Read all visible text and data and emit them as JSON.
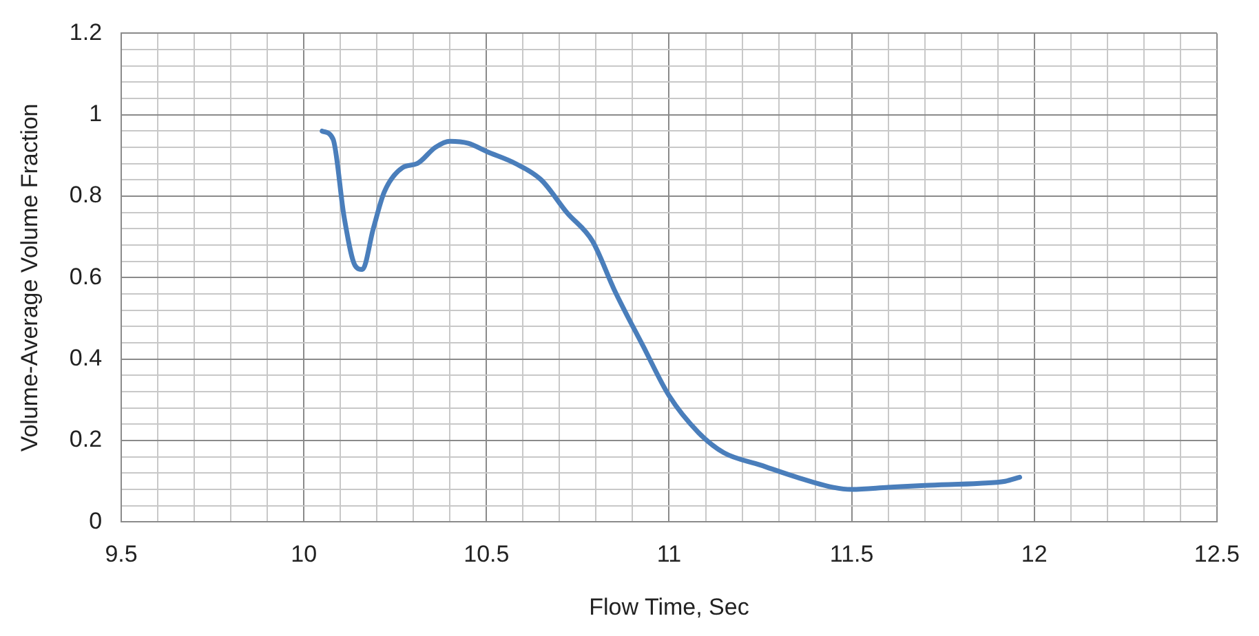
{
  "chart_data": {
    "type": "line",
    "xlabel": "Flow Time, Sec",
    "ylabel": "Volume-Average Volume Fraction",
    "x": [
      10.05,
      10.08,
      10.11,
      10.14,
      10.16,
      10.19,
      10.22,
      10.27,
      10.31,
      10.36,
      10.4,
      10.45,
      10.5,
      10.58,
      10.65,
      10.72,
      10.79,
      10.85,
      10.93,
      11.0,
      11.08,
      11.15,
      11.25,
      11.35,
      11.45,
      11.5,
      11.6,
      11.7,
      11.85,
      11.92,
      11.96
    ],
    "series": [
      {
        "color": "#4a7ebb",
        "values": [
          0.96,
          0.94,
          0.75,
          0.63,
          0.62,
          0.72,
          0.81,
          0.87,
          0.88,
          0.92,
          0.935,
          0.93,
          0.91,
          0.88,
          0.84,
          0.76,
          0.69,
          0.57,
          0.43,
          0.31,
          0.22,
          0.17,
          0.14,
          0.11,
          0.085,
          0.08,
          0.085,
          0.09,
          0.095,
          0.1,
          0.11
        ]
      }
    ],
    "xlim": [
      9.5,
      12.5
    ],
    "xticks": [
      9.5,
      {
        "value": 9.6,
        "label": null
      },
      {
        "value": 9.7,
        "label": null
      },
      {
        "value": 9.8,
        "label": null
      },
      {
        "value": 9.9,
        "label": null
      },
      10,
      {
        "value": 10.1,
        "label": null
      },
      {
        "value": 10.2,
        "label": null
      },
      {
        "value": 10.3,
        "label": null
      },
      {
        "value": 10.4,
        "label": null
      },
      10.5,
      {
        "value": 10.6,
        "label": null
      },
      {
        "value": 10.7,
        "label": null
      },
      {
        "value": 10.8,
        "label": null
      },
      {
        "value": 10.9,
        "label": null
      },
      11,
      {
        "value": 11.1,
        "label": null
      },
      {
        "value": 11.2,
        "label": null
      },
      {
        "value": 11.3,
        "label": null
      },
      {
        "value": 11.4,
        "label": null
      },
      11.5,
      {
        "value": 11.6,
        "label": null
      },
      {
        "value": 11.7,
        "label": null
      },
      {
        "value": 11.8,
        "label": null
      },
      {
        "value": 11.9,
        "label": null
      },
      12,
      {
        "value": 12.1,
        "label": null
      },
      {
        "value": 12.2,
        "label": null
      },
      {
        "value": 12.3,
        "label": null
      },
      {
        "value": 12.4,
        "label": null
      },
      12.5
    ],
    "ylim": [
      0,
      1.2
    ],
    "yticks": [
      0,
      {
        "value": 0.04,
        "label": null
      },
      {
        "value": 0.08,
        "label": null
      },
      {
        "value": 0.12,
        "label": null
      },
      {
        "value": 0.16,
        "label": null
      },
      0.2,
      {
        "value": 0.24,
        "label": null
      },
      {
        "value": 0.28,
        "label": null
      },
      {
        "value": 0.32,
        "label": null
      },
      {
        "value": 0.36,
        "label": null
      },
      0.4,
      {
        "value": 0.44,
        "label": null
      },
      {
        "value": 0.48,
        "label": null
      },
      {
        "value": 0.52,
        "label": null
      },
      {
        "value": 0.56,
        "label": null
      },
      0.6,
      {
        "value": 0.64,
        "label": null
      },
      {
        "value": 0.68,
        "label": null
      },
      {
        "value": 0.72,
        "label": null
      },
      {
        "value": 0.76,
        "label": null
      },
      0.8,
      {
        "value": 0.84,
        "label": null
      },
      {
        "value": 0.88,
        "label": null
      },
      {
        "value": 0.92,
        "label": null
      },
      {
        "value": 0.96,
        "label": null
      },
      1,
      {
        "value": 1.04,
        "label": null
      },
      {
        "value": 1.08,
        "label": null
      },
      {
        "value": 1.12,
        "label": null
      },
      {
        "value": 1.16,
        "label": null
      },
      1.2
    ],
    "grid": true,
    "legend": false,
    "marker": "none",
    "line_style": "solid"
  }
}
